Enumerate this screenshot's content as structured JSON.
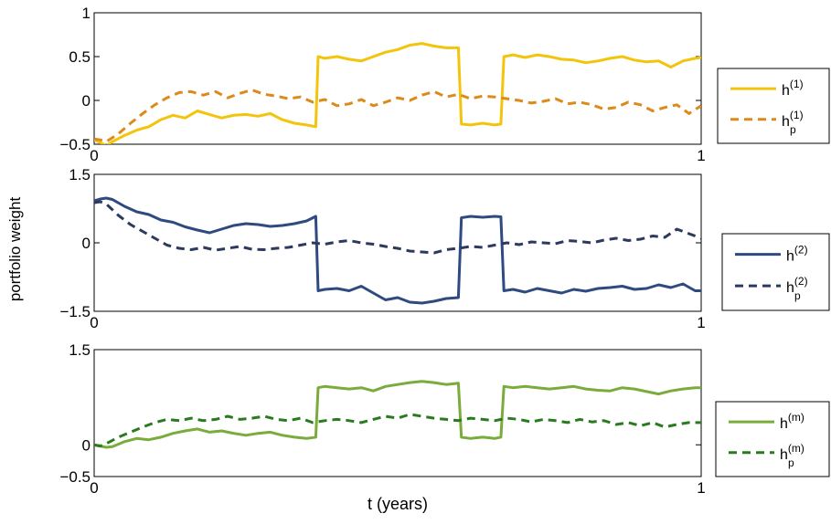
{
  "figure": {
    "ylabel": "portfolio weight",
    "xlabel": "t (years)"
  },
  "chart_data": [
    {
      "type": "line",
      "xlim": [
        0,
        1
      ],
      "ylim": [
        -0.5,
        1
      ],
      "yticks": [
        -0.5,
        0,
        0.5,
        1
      ],
      "ytick_labels": [
        "−0.5",
        "0",
        "0.5",
        "1"
      ],
      "xticks": [
        0,
        1
      ],
      "xtick_labels": [
        "0",
        "1"
      ],
      "grid": false,
      "legend_position": "outside-right",
      "series": [
        {
          "name": "h(1)",
          "label_base": "h",
          "label_sup": "(1)",
          "label_sub": "",
          "color": "#f2c50c",
          "dash": "solid",
          "x": [
            0,
            0.01,
            0.02,
            0.03,
            0.05,
            0.07,
            0.09,
            0.11,
            0.13,
            0.15,
            0.17,
            0.19,
            0.21,
            0.23,
            0.25,
            0.27,
            0.29,
            0.31,
            0.33,
            0.35,
            0.365,
            0.369,
            0.38,
            0.4,
            0.42,
            0.44,
            0.46,
            0.48,
            0.5,
            0.52,
            0.54,
            0.56,
            0.58,
            0.6,
            0.605,
            0.62,
            0.64,
            0.66,
            0.67,
            0.675,
            0.69,
            0.71,
            0.73,
            0.75,
            0.77,
            0.79,
            0.81,
            0.83,
            0.85,
            0.87,
            0.89,
            0.91,
            0.93,
            0.95,
            0.97,
            0.99,
            1.0
          ],
          "y": [
            -0.45,
            -0.48,
            -0.52,
            -0.47,
            -0.4,
            -0.34,
            -0.3,
            -0.22,
            -0.17,
            -0.2,
            -0.12,
            -0.16,
            -0.2,
            -0.17,
            -0.16,
            -0.18,
            -0.15,
            -0.22,
            -0.26,
            -0.28,
            -0.3,
            0.5,
            0.48,
            0.5,
            0.47,
            0.45,
            0.5,
            0.55,
            0.58,
            0.63,
            0.65,
            0.62,
            0.6,
            0.6,
            -0.27,
            -0.28,
            -0.26,
            -0.28,
            -0.27,
            0.5,
            0.52,
            0.49,
            0.52,
            0.5,
            0.47,
            0.46,
            0.43,
            0.45,
            0.48,
            0.5,
            0.46,
            0.44,
            0.45,
            0.38,
            0.45,
            0.48,
            0.49
          ]
        },
        {
          "name": "hp(1)",
          "label_base": "h",
          "label_sup": "(1)",
          "label_sub": "p",
          "color": "#dc8a1a",
          "dash": "dashed",
          "x": [
            0,
            0.01,
            0.02,
            0.04,
            0.06,
            0.08,
            0.1,
            0.12,
            0.14,
            0.16,
            0.18,
            0.2,
            0.22,
            0.24,
            0.26,
            0.28,
            0.3,
            0.32,
            0.34,
            0.36,
            0.38,
            0.4,
            0.42,
            0.44,
            0.46,
            0.48,
            0.5,
            0.52,
            0.54,
            0.56,
            0.58,
            0.6,
            0.62,
            0.64,
            0.66,
            0.68,
            0.7,
            0.72,
            0.74,
            0.76,
            0.78,
            0.8,
            0.82,
            0.84,
            0.86,
            0.88,
            0.9,
            0.92,
            0.94,
            0.96,
            0.98,
            1.0
          ],
          "y": [
            -0.44,
            -0.45,
            -0.47,
            -0.38,
            -0.26,
            -0.15,
            -0.05,
            0.03,
            0.09,
            0.1,
            0.06,
            0.1,
            0.03,
            0.08,
            0.12,
            0.07,
            0.05,
            0.02,
            0.04,
            -0.02,
            0.01,
            -0.06,
            -0.04,
            0.01,
            -0.06,
            -0.02,
            0.03,
            0.0,
            0.06,
            0.1,
            0.04,
            0.07,
            0.02,
            0.05,
            0.04,
            0.02,
            0.0,
            -0.03,
            -0.01,
            0.02,
            -0.04,
            -0.02,
            -0.05,
            -0.1,
            -0.08,
            -0.02,
            -0.05,
            -0.12,
            -0.08,
            -0.05,
            -0.15,
            -0.06
          ]
        }
      ]
    },
    {
      "type": "line",
      "xlim": [
        0,
        1
      ],
      "ylim": [
        -1.5,
        1.5
      ],
      "yticks": [
        -1.5,
        0,
        1.5
      ],
      "ytick_labels": [
        "−1.5",
        "0",
        "1.5"
      ],
      "xticks": [
        0,
        1
      ],
      "xtick_labels": [
        "0",
        "1"
      ],
      "grid": false,
      "legend_position": "outside-right",
      "series": [
        {
          "name": "h(2)",
          "label_base": "h",
          "label_sup": "(2)",
          "label_sub": "",
          "color": "#2e4a80",
          "dash": "solid",
          "x": [
            0,
            0.01,
            0.02,
            0.03,
            0.05,
            0.07,
            0.09,
            0.11,
            0.13,
            0.15,
            0.17,
            0.19,
            0.21,
            0.23,
            0.25,
            0.27,
            0.29,
            0.31,
            0.33,
            0.35,
            0.365,
            0.369,
            0.38,
            0.4,
            0.42,
            0.44,
            0.46,
            0.48,
            0.5,
            0.52,
            0.54,
            0.56,
            0.58,
            0.6,
            0.605,
            0.62,
            0.64,
            0.66,
            0.67,
            0.675,
            0.69,
            0.71,
            0.73,
            0.75,
            0.77,
            0.79,
            0.81,
            0.83,
            0.85,
            0.87,
            0.89,
            0.91,
            0.93,
            0.95,
            0.97,
            0.99,
            1.0
          ],
          "y": [
            0.92,
            0.96,
            0.98,
            0.95,
            0.8,
            0.68,
            0.62,
            0.5,
            0.45,
            0.35,
            0.28,
            0.22,
            0.3,
            0.38,
            0.42,
            0.4,
            0.36,
            0.38,
            0.42,
            0.48,
            0.58,
            -1.05,
            -1.02,
            -1.0,
            -1.05,
            -0.95,
            -1.1,
            -1.25,
            -1.2,
            -1.3,
            -1.32,
            -1.28,
            -1.22,
            -1.2,
            0.55,
            0.58,
            0.56,
            0.58,
            0.57,
            -1.05,
            -1.02,
            -1.08,
            -1.0,
            -1.05,
            -1.1,
            -1.02,
            -1.06,
            -1.0,
            -0.98,
            -0.95,
            -1.02,
            -1.0,
            -0.92,
            -0.98,
            -0.9,
            -1.05,
            -1.05
          ]
        },
        {
          "name": "hp(2)",
          "label_base": "h",
          "label_sup": "(2)",
          "label_sub": "p",
          "color": "#2b3a5e",
          "dash": "dashed",
          "x": [
            0,
            0.01,
            0.02,
            0.04,
            0.06,
            0.08,
            0.1,
            0.12,
            0.14,
            0.16,
            0.18,
            0.2,
            0.22,
            0.24,
            0.26,
            0.28,
            0.3,
            0.32,
            0.34,
            0.36,
            0.38,
            0.4,
            0.42,
            0.44,
            0.46,
            0.48,
            0.5,
            0.52,
            0.54,
            0.56,
            0.58,
            0.6,
            0.62,
            0.64,
            0.66,
            0.68,
            0.7,
            0.72,
            0.74,
            0.76,
            0.78,
            0.8,
            0.82,
            0.84,
            0.86,
            0.88,
            0.9,
            0.92,
            0.94,
            0.96,
            0.98,
            1.0
          ],
          "y": [
            0.88,
            0.9,
            0.85,
            0.6,
            0.4,
            0.25,
            0.1,
            -0.05,
            -0.12,
            -0.15,
            -0.1,
            -0.16,
            -0.12,
            -0.08,
            -0.14,
            -0.15,
            -0.12,
            -0.1,
            -0.05,
            0.0,
            -0.03,
            0.02,
            0.05,
            0.0,
            -0.03,
            -0.08,
            -0.12,
            -0.18,
            -0.2,
            -0.22,
            -0.15,
            -0.12,
            -0.08,
            -0.1,
            -0.05,
            0.0,
            -0.04,
            0.02,
            0.0,
            -0.02,
            0.05,
            0.03,
            0.0,
            0.06,
            0.1,
            0.05,
            0.08,
            0.15,
            0.12,
            0.3,
            0.2,
            0.1
          ]
        }
      ]
    },
    {
      "type": "line",
      "xlim": [
        0,
        1
      ],
      "ylim": [
        -0.5,
        1.5
      ],
      "yticks": [
        -0.5,
        0,
        1.5
      ],
      "ytick_labels": [
        "−0.5",
        "0",
        "1.5"
      ],
      "xticks": [
        0,
        1
      ],
      "xtick_labels": [
        "0",
        "1"
      ],
      "grid": false,
      "legend_position": "outside-right",
      "series": [
        {
          "name": "h(m)",
          "label_base": "h",
          "label_sup": "(m)",
          "label_sub": "",
          "color": "#7aac3c",
          "dash": "solid",
          "x": [
            0,
            0.01,
            0.02,
            0.03,
            0.05,
            0.07,
            0.09,
            0.11,
            0.13,
            0.15,
            0.17,
            0.19,
            0.21,
            0.23,
            0.25,
            0.27,
            0.29,
            0.31,
            0.33,
            0.35,
            0.365,
            0.369,
            0.38,
            0.4,
            0.42,
            0.44,
            0.46,
            0.48,
            0.5,
            0.52,
            0.54,
            0.56,
            0.58,
            0.6,
            0.605,
            0.62,
            0.64,
            0.66,
            0.67,
            0.675,
            0.69,
            0.71,
            0.73,
            0.75,
            0.77,
            0.79,
            0.81,
            0.83,
            0.85,
            0.87,
            0.89,
            0.91,
            0.93,
            0.95,
            0.97,
            0.99,
            1.0
          ],
          "y": [
            0.0,
            -0.02,
            -0.04,
            -0.03,
            0.05,
            0.1,
            0.08,
            0.12,
            0.18,
            0.22,
            0.25,
            0.2,
            0.22,
            0.18,
            0.15,
            0.18,
            0.2,
            0.15,
            0.12,
            0.1,
            0.12,
            0.9,
            0.92,
            0.9,
            0.88,
            0.9,
            0.85,
            0.92,
            0.95,
            0.98,
            1.0,
            0.98,
            0.95,
            0.97,
            0.12,
            0.1,
            0.12,
            0.1,
            0.12,
            0.92,
            0.9,
            0.92,
            0.9,
            0.88,
            0.9,
            0.92,
            0.88,
            0.86,
            0.85,
            0.9,
            0.88,
            0.84,
            0.8,
            0.85,
            0.88,
            0.9,
            0.9
          ]
        },
        {
          "name": "hp(m)",
          "label_base": "h",
          "label_sup": "(m)",
          "label_sub": "p",
          "color": "#2a7a1f",
          "dash": "dashed",
          "x": [
            0,
            0.01,
            0.02,
            0.04,
            0.06,
            0.08,
            0.1,
            0.12,
            0.14,
            0.16,
            0.18,
            0.2,
            0.22,
            0.24,
            0.26,
            0.28,
            0.3,
            0.32,
            0.34,
            0.36,
            0.38,
            0.4,
            0.42,
            0.44,
            0.46,
            0.48,
            0.5,
            0.52,
            0.54,
            0.56,
            0.58,
            0.6,
            0.62,
            0.64,
            0.66,
            0.68,
            0.7,
            0.72,
            0.74,
            0.76,
            0.78,
            0.8,
            0.82,
            0.84,
            0.86,
            0.88,
            0.9,
            0.92,
            0.94,
            0.96,
            0.98,
            1.0
          ],
          "y": [
            0.0,
            -0.02,
            0.02,
            0.12,
            0.2,
            0.28,
            0.35,
            0.4,
            0.38,
            0.42,
            0.38,
            0.4,
            0.45,
            0.4,
            0.42,
            0.45,
            0.4,
            0.38,
            0.42,
            0.35,
            0.38,
            0.4,
            0.38,
            0.35,
            0.4,
            0.45,
            0.42,
            0.48,
            0.45,
            0.42,
            0.4,
            0.38,
            0.42,
            0.4,
            0.38,
            0.42,
            0.4,
            0.36,
            0.4,
            0.38,
            0.35,
            0.4,
            0.36,
            0.38,
            0.32,
            0.35,
            0.3,
            0.35,
            0.28,
            0.32,
            0.35,
            0.35
          ]
        }
      ]
    }
  ]
}
